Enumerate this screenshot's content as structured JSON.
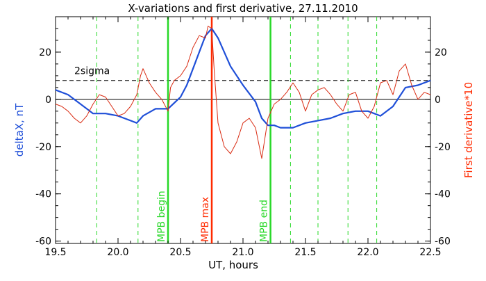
{
  "chart_data": {
    "type": "line",
    "title": "X-variations and first derivative, 27.11.2010",
    "xlabel": "UT, hours",
    "ylabel_left": "deltaX, nT",
    "ylabel_right": "First derivative*10",
    "xlim": [
      19.5,
      22.5
    ],
    "ylim": [
      -61,
      35
    ],
    "x_ticks": [
      "19.5",
      "20.0",
      "20.5",
      "21.0",
      "21.5",
      "22.0",
      "22.5"
    ],
    "y_ticks": [
      "20",
      "0",
      "-20",
      "-40",
      "-60"
    ],
    "grid": false,
    "colors": {
      "deltaX": "#1f4fd8",
      "derivative": "#d92b12",
      "mpb_begin_end": "#27d827",
      "mpb_max": "#ff2a00",
      "dashed_green": "#27d827",
      "sigma": "#000000",
      "zero": "#000000"
    },
    "sigma_level": 8,
    "sigma_label": "2sigma",
    "dashed_markers": [
      19.83,
      20.16,
      21.38,
      21.6,
      21.84,
      22.07
    ],
    "vertical_markers": [
      {
        "x": 20.4,
        "label": "MPB begin",
        "color": "#27d827"
      },
      {
        "x": 20.75,
        "label": "MPB max",
        "color": "#ff2a00"
      },
      {
        "x": 21.22,
        "label": "MPB end",
        "color": "#27d827"
      }
    ],
    "series": [
      {
        "name": "deltaX",
        "color": "#1f4fd8",
        "x": [
          19.5,
          19.6,
          19.7,
          19.8,
          19.9,
          20.0,
          20.1,
          20.15,
          20.2,
          20.3,
          20.4,
          20.5,
          20.55,
          20.6,
          20.65,
          20.7,
          20.75,
          20.8,
          20.85,
          20.9,
          21.0,
          21.1,
          21.15,
          21.2,
          21.25,
          21.3,
          21.4,
          21.5,
          21.6,
          21.7,
          21.8,
          21.9,
          22.0,
          22.05,
          22.1,
          22.2,
          22.3,
          22.4,
          22.5
        ],
        "y": [
          4,
          2,
          -2,
          -6,
          -6,
          -7,
          -9,
          -10,
          -7,
          -4,
          -4,
          1,
          6,
          13,
          20,
          27,
          30,
          26,
          20,
          14,
          6,
          -1,
          -8,
          -11,
          -11,
          -12,
          -12,
          -10,
          -9,
          -8,
          -6,
          -5,
          -5,
          -6,
          -7,
          -3,
          5,
          6,
          8
        ]
      },
      {
        "name": "First derivative*10",
        "color": "#d92b12",
        "x": [
          19.5,
          19.55,
          19.6,
          19.65,
          19.7,
          19.75,
          19.8,
          19.85,
          19.9,
          19.95,
          20.0,
          20.05,
          20.1,
          20.15,
          20.18,
          20.2,
          20.25,
          20.3,
          20.35,
          20.4,
          20.42,
          20.45,
          20.5,
          20.55,
          20.6,
          20.65,
          20.7,
          20.72,
          20.75,
          20.77,
          20.8,
          20.85,
          20.9,
          20.95,
          21.0,
          21.05,
          21.1,
          21.15,
          21.2,
          21.25,
          21.3,
          21.35,
          21.4,
          21.45,
          21.5,
          21.55,
          21.6,
          21.65,
          21.7,
          21.75,
          21.8,
          21.85,
          21.9,
          21.95,
          22.0,
          22.05,
          22.1,
          22.15,
          22.2,
          22.25,
          22.3,
          22.35,
          22.4,
          22.45,
          22.5
        ],
        "y": [
          -2,
          -3,
          -5,
          -8,
          -10,
          -7,
          -2,
          2,
          1,
          -3,
          -7,
          -6,
          -3,
          2,
          10,
          13,
          7,
          3,
          0,
          -5,
          5,
          8,
          10,
          14,
          22,
          27,
          26,
          31,
          30,
          12,
          -10,
          -20,
          -23,
          -18,
          -10,
          -8,
          -12,
          -25,
          -8,
          -2,
          0,
          3,
          7,
          3,
          -5,
          2,
          4,
          5,
          2,
          -2,
          -5,
          2,
          3,
          -5,
          -8,
          -3,
          7,
          8,
          2,
          12,
          15,
          6,
          0,
          3,
          2
        ]
      }
    ]
  }
}
